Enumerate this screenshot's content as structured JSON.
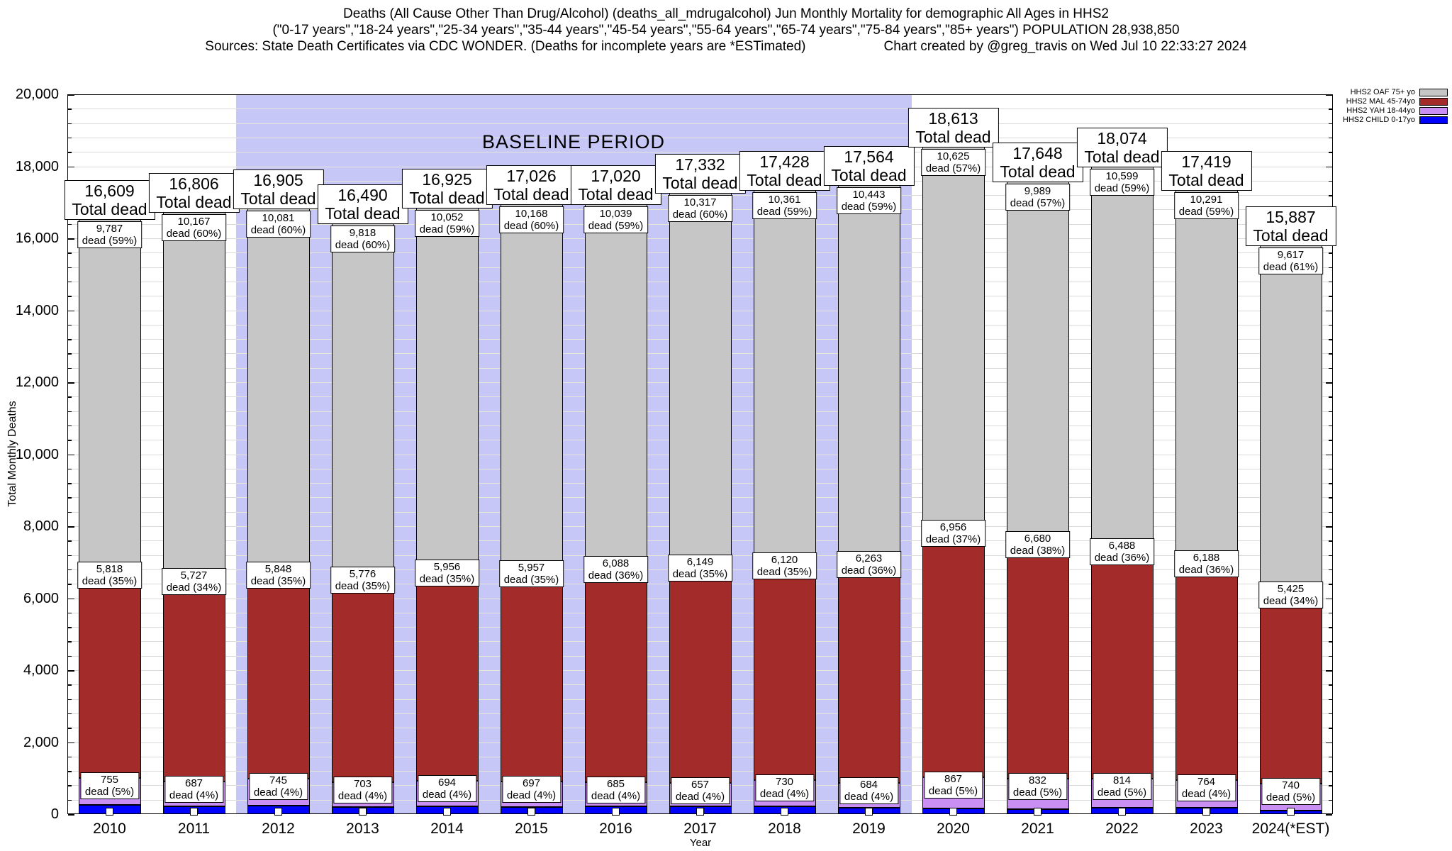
{
  "title": {
    "line1": "Deaths (All Cause Other Than Drug/Alcohol) (deaths_all_mdrugalcohol) Jun Monthly Mortality for demographic All Ages in HHS2",
    "line2": "(\"0-17 years\",\"18-24 years\",\"25-34 years\",\"35-44 years\",\"45-54 years\",\"55-64 years\",\"65-74 years\",\"75-84 years\",\"85+ years\") POPULATION 28,938,850",
    "line3_left": "Sources: State Death Certificates via CDC WONDER. (Deaths for incomplete years are *ESTimated)",
    "line3_right": "Chart created by @greg_travis on Wed Jul 10 22:33:27 2024"
  },
  "legend": {
    "position": "top-right",
    "entries": [
      {
        "key": "oaf",
        "label": "HHS2 OAF 75+ yo",
        "color": "#c6c6c6"
      },
      {
        "key": "mal",
        "label": "HHS2 MAL 45-74yo",
        "color": "#a32c2a"
      },
      {
        "key": "yah",
        "label": "HHS2 YAH 18-44yo",
        "color": "#c98ff2"
      },
      {
        "key": "child",
        "label": "HHS2 CHILD 0-17yo",
        "color": "#0000ff"
      }
    ]
  },
  "axes": {
    "ylabel": "Total Monthly Deaths",
    "xlabel": "Year",
    "ylim": [
      0,
      20000
    ],
    "ytick_step": 2000,
    "yminor_step": 400,
    "grid": true
  },
  "annotations": {
    "baseline_label": "BASELINE PERIOD",
    "baseline_from": "2012",
    "baseline_to": "2019",
    "band_color": "#c6c6f7"
  },
  "labels": {
    "total_suffix": "Total dead",
    "dead_format": "dead ({pct}%)"
  },
  "chart_data": {
    "type": "bar",
    "stacked": true,
    "title": "Deaths (All Cause Other Than Drug/Alcohol) Jun Monthly Mortality for demographic All Ages in HHS2",
    "xlabel": "Year",
    "ylabel": "Total Monthly Deaths",
    "ylim": [
      0,
      20000
    ],
    "yticks": [
      0,
      2000,
      4000,
      6000,
      8000,
      10000,
      12000,
      14000,
      16000,
      18000,
      20000
    ],
    "categories": [
      "2010",
      "2011",
      "2012",
      "2013",
      "2014",
      "2015",
      "2016",
      "2017",
      "2018",
      "2019",
      "2020",
      "2021",
      "2022",
      "2023",
      "2024(*EST)"
    ],
    "totals": [
      16609,
      16806,
      16905,
      16490,
      16925,
      17026,
      17020,
      17332,
      17428,
      17564,
      18613,
      17648,
      18074,
      17419,
      15887
    ],
    "series": [
      {
        "key": "child",
        "name": "HHS2 CHILD 0-17yo",
        "color": "#0000ff",
        "labeled": false,
        "values": [
          249,
          225,
          231,
          193,
          223,
          204,
          208,
          209,
          217,
          174,
          165,
          147,
          173,
          176,
          105
        ]
      },
      {
        "key": "yah",
        "name": "HHS2 YAH 18-44yo",
        "color": "#c98ff2",
        "labeled": true,
        "values": [
          755,
          687,
          745,
          703,
          694,
          697,
          685,
          657,
          730,
          684,
          867,
          832,
          814,
          764,
          740
        ],
        "pct": [
          5,
          4,
          4,
          4,
          4,
          4,
          4,
          4,
          4,
          4,
          5,
          5,
          5,
          4,
          5
        ]
      },
      {
        "key": "mal",
        "name": "HHS2 MAL 45-74yo",
        "color": "#a32c2a",
        "labeled": true,
        "values": [
          5818,
          5727,
          5848,
          5776,
          5956,
          5957,
          6088,
          6149,
          6120,
          6263,
          6956,
          6680,
          6488,
          6188,
          5425
        ],
        "pct": [
          35,
          34,
          35,
          35,
          35,
          35,
          36,
          35,
          35,
          36,
          37,
          38,
          36,
          36,
          34
        ]
      },
      {
        "key": "oaf",
        "name": "HHS2 OAF 75+ yo",
        "color": "#c6c6c6",
        "labeled": true,
        "values": [
          9787,
          10167,
          10081,
          9818,
          10052,
          10168,
          10039,
          10317,
          10361,
          10443,
          10625,
          9989,
          10599,
          10291,
          9617
        ],
        "pct": [
          59,
          60,
          60,
          60,
          59,
          60,
          59,
          60,
          59,
          59,
          57,
          57,
          59,
          59,
          61
        ]
      }
    ]
  }
}
